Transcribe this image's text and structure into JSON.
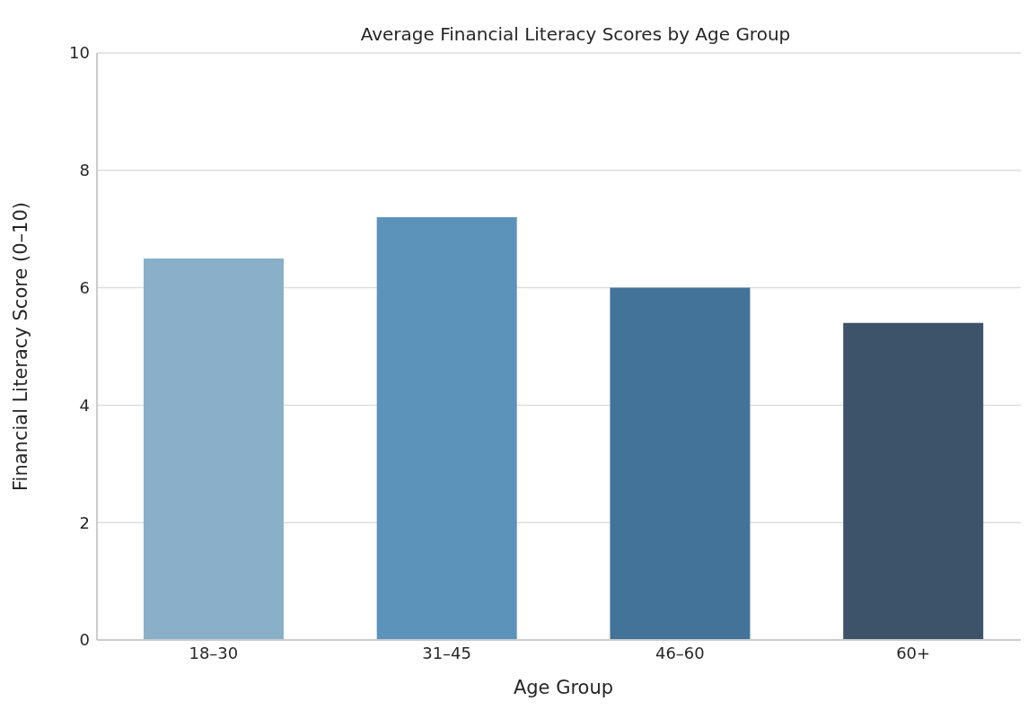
{
  "chart_data": {
    "type": "bar",
    "title": "Average Financial Literacy Scores by Age Group",
    "xlabel": "Age Group",
    "ylabel": "Financial Literacy Score (0–10)",
    "categories": [
      "18–30",
      "31–45",
      "46–60",
      "60+"
    ],
    "values": [
      6.5,
      7.2,
      6.0,
      5.4
    ],
    "colors": [
      "#89afc9",
      "#5b93ba",
      "#447399",
      "#3d5369"
    ],
    "ylim": [
      0,
      10
    ],
    "yticks": [
      0,
      2,
      4,
      6,
      8,
      10
    ],
    "grid": "y"
  }
}
